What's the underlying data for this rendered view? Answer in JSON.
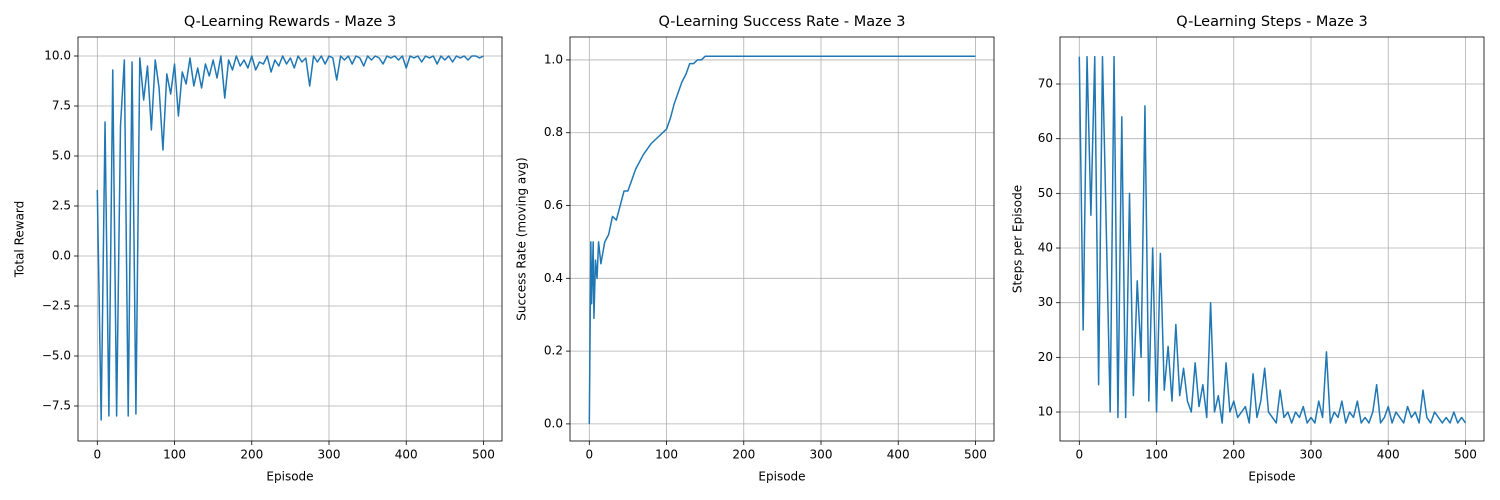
{
  "chart_data": [
    {
      "type": "line",
      "title": "Q-Learning Rewards - Maze 3",
      "x_label": "Episode",
      "y_label": "Total Reward",
      "grid": true,
      "xlim": [
        -25,
        524
      ],
      "xticks": [
        0,
        100,
        200,
        300,
        400,
        500
      ],
      "ylim": [
        -9.25,
        10.95
      ],
      "yticks": [
        {
          "value": -7.5,
          "label": "−7.5"
        },
        {
          "value": -5,
          "label": "−5.0"
        },
        {
          "value": -2.5,
          "label": "−2.5"
        },
        {
          "value": 0,
          "label": "0.0"
        },
        {
          "value": 2.5,
          "label": "2.5"
        },
        {
          "value": 5,
          "label": "5.0"
        },
        {
          "value": 7.5,
          "label": "7.5"
        },
        {
          "value": 10,
          "label": "10.0"
        }
      ],
      "x": [
        0,
        5,
        10,
        15,
        20,
        25,
        30,
        35,
        40,
        45,
        50,
        55,
        60,
        65,
        70,
        75,
        80,
        85,
        90,
        95,
        100,
        105,
        110,
        115,
        120,
        125,
        130,
        135,
        140,
        145,
        150,
        155,
        160,
        165,
        170,
        175,
        180,
        185,
        190,
        195,
        200,
        205,
        210,
        215,
        220,
        225,
        230,
        235,
        240,
        245,
        250,
        255,
        260,
        265,
        270,
        275,
        280,
        285,
        290,
        295,
        300,
        305,
        310,
        315,
        320,
        325,
        330,
        335,
        340,
        345,
        350,
        355,
        360,
        365,
        370,
        375,
        380,
        385,
        390,
        395,
        400,
        405,
        410,
        415,
        420,
        425,
        430,
        435,
        440,
        445,
        450,
        455,
        460,
        465,
        470,
        475,
        480,
        485,
        490,
        495,
        500
      ],
      "series": [
        {
          "name": "Total Reward",
          "color": "#1f77b4",
          "values": [
            3.3,
            -8.2,
            6.7,
            -8,
            9.3,
            -8,
            6.5,
            9.8,
            -8,
            9.7,
            -7.9,
            9.9,
            7.8,
            9.5,
            6.3,
            9.8,
            8.4,
            5.3,
            9.1,
            8.1,
            9.6,
            7,
            9.2,
            8.6,
            9.9,
            8.5,
            9.4,
            8.4,
            9.6,
            9,
            9.8,
            8.9,
            10,
            7.9,
            9.8,
            9.3,
            10,
            9.5,
            9.8,
            9.4,
            10,
            9.3,
            9.7,
            9.6,
            10,
            9.2,
            9.8,
            9.5,
            10,
            9.6,
            9.9,
            9.4,
            10,
            9.7,
            9.9,
            8.5,
            10,
            9.7,
            10,
            9.6,
            10,
            9.9,
            8.8,
            10,
            9.8,
            10,
            9.6,
            10,
            9.9,
            9.5,
            10,
            9.8,
            10,
            9.9,
            9.6,
            10,
            9.9,
            10,
            9.8,
            10,
            9.4,
            10,
            9.9,
            10,
            9.7,
            10,
            9.9,
            10,
            9.6,
            10,
            9.8,
            10,
            9.7,
            10,
            9.9,
            10,
            9.8,
            10,
            10,
            9.9,
            10
          ]
        }
      ]
    },
    {
      "type": "line",
      "title": "Q-Learning Success Rate - Maze 3",
      "x_label": "Episode",
      "y_label": "Success Rate (moving avg)",
      "grid": true,
      "xlim": [
        -25,
        524
      ],
      "xticks": [
        0,
        100,
        200,
        300,
        400,
        500
      ],
      "ylim": [
        -0.047,
        1.063
      ],
      "yticks": [
        {
          "value": 0,
          "label": "0.0"
        },
        {
          "value": 0.2,
          "label": "0.2"
        },
        {
          "value": 0.4,
          "label": "0.4"
        },
        {
          "value": 0.6,
          "label": "0.6"
        },
        {
          "value": 0.8,
          "label": "0.8"
        },
        {
          "value": 1,
          "label": "1.0"
        }
      ],
      "x": [
        0,
        2,
        3,
        5,
        6,
        8,
        10,
        12,
        15,
        20,
        25,
        30,
        35,
        40,
        45,
        50,
        55,
        60,
        70,
        80,
        90,
        100,
        105,
        110,
        115,
        120,
        125,
        130,
        135,
        140,
        145,
        150,
        155,
        200,
        300,
        400,
        500
      ],
      "series": [
        {
          "name": "Success Rate",
          "color": "#1f77b4",
          "values": [
            0,
            0.5,
            0.33,
            0.5,
            0.29,
            0.45,
            0.4,
            0.5,
            0.44,
            0.5,
            0.52,
            0.57,
            0.56,
            0.6,
            0.64,
            0.64,
            0.67,
            0.7,
            0.74,
            0.77,
            0.79,
            0.81,
            0.84,
            0.88,
            0.91,
            0.94,
            0.96,
            0.99,
            0.99,
            1.0,
            1.0,
            1.01,
            1.01,
            1.01,
            1.01,
            1.01,
            1.01
          ]
        }
      ]
    },
    {
      "type": "line",
      "title": "Q-Learning Steps - Maze 3",
      "x_label": "Episode",
      "y_label": "Steps per Episode",
      "grid": true,
      "xlim": [
        -25,
        524
      ],
      "xticks": [
        0,
        100,
        200,
        300,
        400,
        500
      ],
      "ylim": [
        4.7,
        78.6
      ],
      "yticks": [
        10,
        20,
        30,
        40,
        50,
        60,
        70
      ],
      "x": [
        0,
        5,
        10,
        15,
        20,
        25,
        30,
        35,
        40,
        45,
        50,
        55,
        60,
        65,
        70,
        75,
        80,
        85,
        90,
        95,
        100,
        105,
        110,
        115,
        120,
        125,
        130,
        135,
        140,
        145,
        150,
        155,
        160,
        165,
        170,
        175,
        180,
        185,
        190,
        195,
        200,
        205,
        210,
        215,
        220,
        225,
        230,
        235,
        240,
        245,
        250,
        255,
        260,
        265,
        270,
        275,
        280,
        285,
        290,
        295,
        300,
        305,
        310,
        315,
        320,
        325,
        330,
        335,
        340,
        345,
        350,
        355,
        360,
        365,
        370,
        375,
        380,
        385,
        390,
        395,
        400,
        405,
        410,
        415,
        420,
        425,
        430,
        435,
        440,
        445,
        450,
        455,
        460,
        465,
        470,
        475,
        480,
        485,
        490,
        495,
        500
      ],
      "series": [
        {
          "name": "Steps",
          "color": "#1f77b4",
          "values": [
            75,
            25,
            75,
            46,
            75,
            15,
            75,
            43,
            10,
            75,
            9,
            64,
            9,
            50,
            13,
            34,
            20,
            66,
            12,
            40,
            10,
            39,
            14,
            22,
            12,
            26,
            13,
            18,
            12,
            10,
            19,
            11,
            15,
            9,
            30,
            10,
            13,
            8,
            19,
            10,
            12,
            9,
            10,
            11,
            8,
            17,
            9,
            12,
            18,
            10,
            9,
            8,
            14,
            9,
            10,
            8,
            10,
            9,
            11,
            8,
            9,
            8,
            12,
            9,
            21,
            8,
            10,
            9,
            12,
            8,
            10,
            9,
            12,
            8,
            9,
            8,
            10,
            15,
            8,
            9,
            11,
            8,
            10,
            9,
            8,
            11,
            9,
            10,
            8,
            14,
            9,
            8,
            10,
            9,
            8,
            9,
            8,
            10,
            8,
            9,
            8
          ]
        }
      ]
    }
  ]
}
